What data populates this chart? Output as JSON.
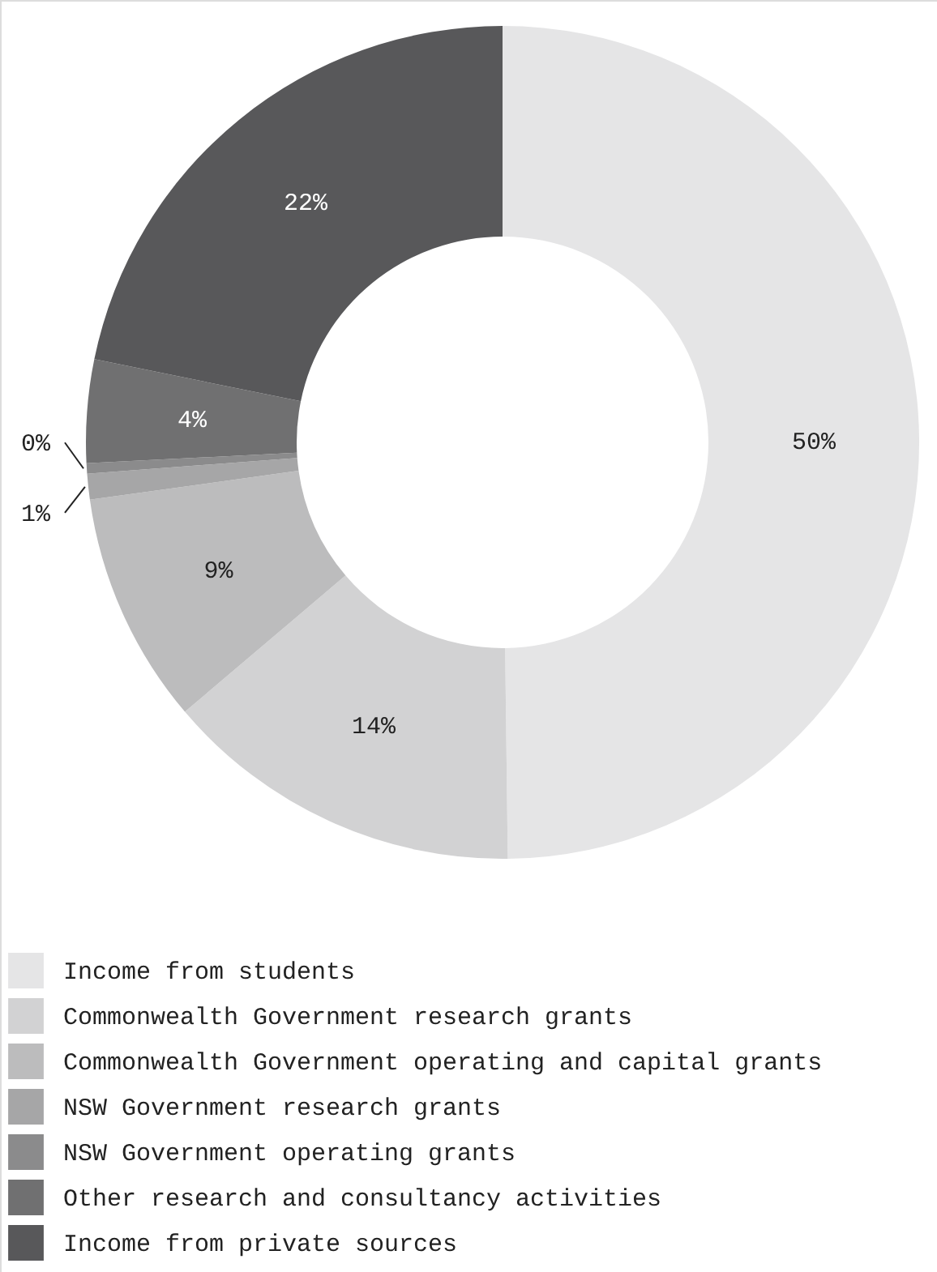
{
  "chart_data": {
    "type": "donut",
    "categories": [
      "Income from students",
      "Commonwealth Government research grants",
      "Commonwealth Government operating and capital grants",
      "NSW Government research grants",
      "NSW Government operating grants",
      "Other research and consultancy activities",
      "Income from private sources"
    ],
    "values": [
      49.8,
      14,
      9,
      1,
      0.4,
      4,
      21.8
    ],
    "value_labels": [
      "50%",
      "14%",
      "9%",
      "1%",
      "0%",
      "4%",
      "22%"
    ],
    "colors": [
      "#e5e5e6",
      "#d2d2d3",
      "#bcbcbd",
      "#a6a6a7",
      "#8b8b8c",
      "#707071",
      "#58585a"
    ],
    "legend": "bottom left"
  }
}
